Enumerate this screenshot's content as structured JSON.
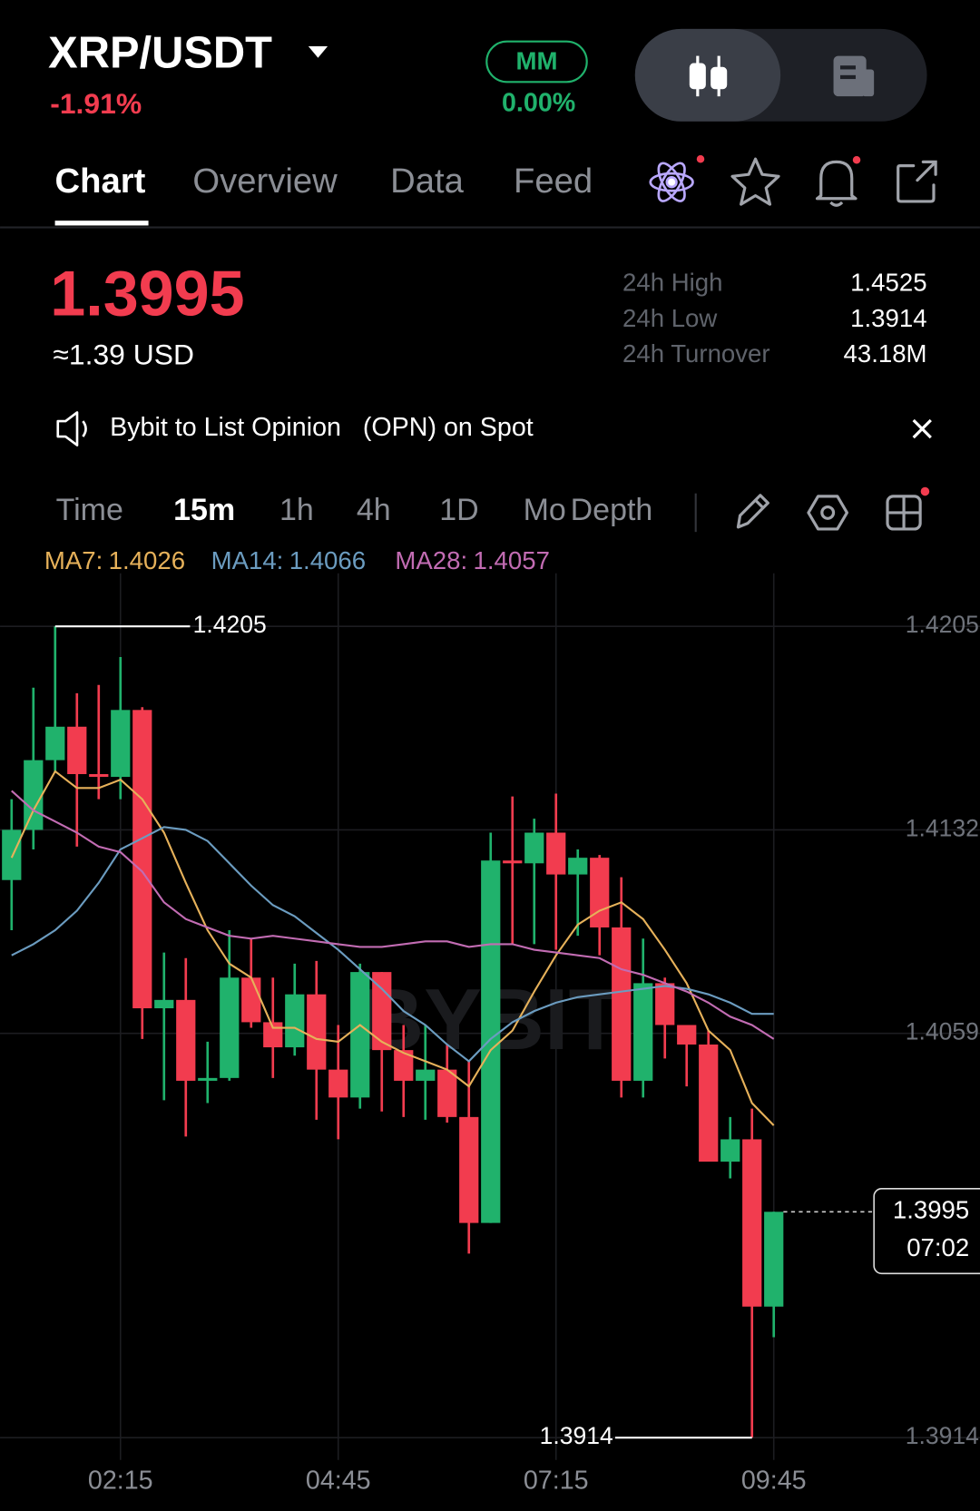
{
  "header": {
    "pair": "XRP/USDT",
    "change": "-1.91%",
    "mm_label": "MM",
    "mm_value": "0.00%"
  },
  "tabs": [
    "Chart",
    "Overview",
    "Data",
    "Feed"
  ],
  "price": {
    "last": "1.3995",
    "usd": "≈1.39 USD"
  },
  "stats": [
    {
      "label": "24h High",
      "value": "1.4525"
    },
    {
      "label": "24h Low",
      "value": "1.3914"
    },
    {
      "label": "24h Turnover",
      "value": "43.18M"
    }
  ],
  "announcement": "Bybit to List Opinion   (OPN) on Spot",
  "intervals": [
    "Time",
    "15m",
    "1h",
    "4h",
    "1D",
    "Mo",
    "Depth"
  ],
  "chart_data": {
    "type": "candlestick",
    "watermark": "BYBIT",
    "categories": [
      null,
      null,
      null,
      null,
      null,
      "02:15",
      null,
      null,
      null,
      null,
      null,
      null,
      null,
      null,
      null,
      "04:45",
      null,
      null,
      null,
      null,
      null,
      null,
      null,
      null,
      null,
      "07:15",
      null,
      null,
      null,
      null,
      null,
      null,
      null,
      null,
      null,
      "09:45"
    ],
    "open": [
      1.4114,
      1.4132,
      1.4157,
      1.4169,
      1.4152,
      1.4151,
      1.4175,
      1.4068,
      1.4071,
      1.4042,
      1.4043,
      1.4079,
      1.4063,
      1.4054,
      1.4073,
      1.4046,
      1.4036,
      1.4081,
      1.4053,
      1.4042,
      1.4046,
      1.4029,
      1.3991,
      1.4121,
      1.412,
      1.4131,
      1.4116,
      1.4122,
      1.4097,
      1.4042,
      1.4077,
      1.4062,
      1.4055,
      1.4013,
      1.4021,
      1.3961
    ],
    "high": [
      1.4143,
      1.4183,
      1.4205,
      1.4181,
      1.4184,
      1.4194,
      1.4176,
      1.4088,
      1.4086,
      1.4056,
      1.4096,
      1.4093,
      1.4079,
      1.4084,
      1.4085,
      1.4062,
      1.4084,
      1.4081,
      1.4062,
      1.4062,
      1.4055,
      1.4049,
      1.4131,
      1.4144,
      1.4136,
      1.4145,
      1.4125,
      1.4123,
      1.4115,
      1.4093,
      1.4079,
      1.4062,
      1.406,
      1.4029,
      1.4032,
      1.3995
    ],
    "low": [
      1.4096,
      1.4125,
      1.4153,
      1.4126,
      1.4143,
      1.4143,
      1.4057,
      1.4035,
      1.4022,
      1.4034,
      1.4042,
      1.4061,
      1.4043,
      1.4051,
      1.4028,
      1.4021,
      1.4032,
      1.4031,
      1.4029,
      1.4028,
      1.4027,
      1.398,
      1.3991,
      1.4091,
      1.4091,
      1.4089,
      1.4094,
      1.4087,
      1.4036,
      1.4036,
      1.405,
      1.404,
      1.4013,
      1.4007,
      1.3914,
      1.395
    ],
    "close": [
      1.4132,
      1.4157,
      1.4169,
      1.4152,
      1.4151,
      1.4175,
      1.4068,
      1.4071,
      1.4042,
      1.4043,
      1.4079,
      1.4063,
      1.4054,
      1.4073,
      1.4046,
      1.4036,
      1.4081,
      1.4053,
      1.4042,
      1.4046,
      1.4029,
      1.3991,
      1.4121,
      1.412,
      1.4131,
      1.4116,
      1.4122,
      1.4097,
      1.4042,
      1.4077,
      1.4062,
      1.4055,
      1.4013,
      1.4021,
      1.3961,
      1.3995
    ],
    "up_color": "#20b26c",
    "down_color": "#f23c4f",
    "series": [
      {
        "name": "MA7:",
        "color": "#e6b15a",
        "values": [
          1.4122,
          1.4139,
          1.4153,
          1.4147,
          1.4147,
          1.415,
          1.4143,
          1.4131,
          1.4113,
          1.4096,
          1.4084,
          1.4079,
          1.4061,
          1.4061,
          1.4057,
          1.4056,
          1.4062,
          1.4056,
          1.4052,
          1.4049,
          1.4046,
          1.404,
          1.4053,
          1.406,
          1.4074,
          1.4087,
          1.4098,
          1.4103,
          1.4106,
          1.41,
          1.4089,
          1.4077,
          1.406,
          1.4053,
          1.4034,
          1.4026
        ]
      },
      {
        "name": "MA14:",
        "color": "#6b9cc0",
        "values": [
          1.4087,
          1.4091,
          1.4096,
          1.4103,
          1.4113,
          1.4125,
          1.4129,
          1.4133,
          1.4132,
          1.4128,
          1.412,
          1.4112,
          1.4105,
          1.4101,
          1.4095,
          1.4089,
          1.4082,
          1.4075,
          1.4067,
          1.4062,
          1.4055,
          1.4049,
          1.4057,
          1.4063,
          1.4067,
          1.407,
          1.4072,
          1.4073,
          1.4074,
          1.4075,
          1.4076,
          1.4075,
          1.4073,
          1.407,
          1.4066,
          1.4066
        ]
      },
      {
        "name": "MA28:",
        "color": "#c26cb3",
        "values": [
          1.4146,
          1.4139,
          1.4135,
          1.4131,
          1.4126,
          1.4124,
          1.4117,
          1.4106,
          1.41,
          1.4097,
          1.4094,
          1.4093,
          1.4094,
          1.4093,
          1.4092,
          1.4091,
          1.409,
          1.409,
          1.4091,
          1.4092,
          1.4092,
          1.409,
          1.4091,
          1.4091,
          1.4089,
          1.4088,
          1.4087,
          1.4086,
          1.4082,
          1.408,
          1.4077,
          1.4074,
          1.407,
          1.4065,
          1.4062,
          1.4057
        ]
      }
    ],
    "ylim": [
      1.3906,
      1.4224
    ],
    "yticks": [
      1.4205,
      1.4132,
      1.4059,
      1.3914
    ],
    "grid": true,
    "high_marker": 1.4205,
    "low_marker": 1.3914,
    "current_price": 1.3995,
    "countdown": "07:02"
  }
}
